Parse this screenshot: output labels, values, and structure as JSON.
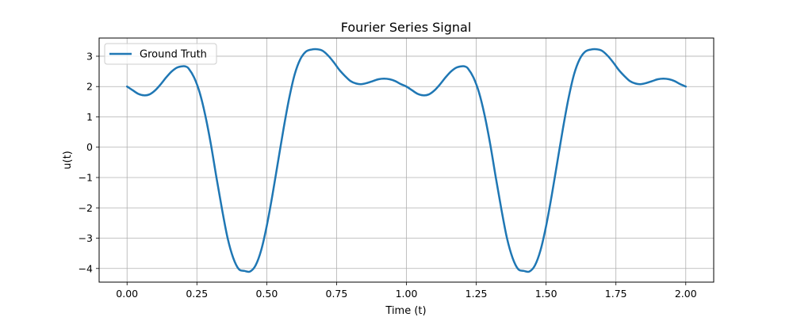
{
  "chart_data": {
    "type": "line",
    "title": "Fourier Series Signal",
    "xlabel": "Time (t)",
    "ylabel": "u(t)",
    "xlim": [
      -0.1,
      2.1
    ],
    "ylim": [
      -4.45,
      3.6
    ],
    "xticks": [
      0.0,
      0.25,
      0.5,
      0.75,
      1.0,
      1.25,
      1.5,
      1.75,
      2.0
    ],
    "xtick_labels": [
      "0.00",
      "0.25",
      "0.50",
      "0.75",
      "1.00",
      "1.25",
      "1.50",
      "1.75",
      "2.00"
    ],
    "yticks": [
      -4,
      -3,
      -2,
      -1,
      0,
      1,
      2,
      3
    ],
    "ytick_labels": [
      "−4",
      "−3",
      "−2",
      "−1",
      "0",
      "1",
      "2",
      "3"
    ],
    "grid": true,
    "legend": {
      "position": "top-left"
    },
    "series": [
      {
        "name": "Ground Truth",
        "color": "#1f77b4",
        "x": [
          0.0,
          0.02,
          0.04,
          0.06,
          0.08,
          0.1,
          0.12,
          0.14,
          0.16,
          0.18,
          0.2,
          0.21,
          0.22,
          0.24,
          0.26,
          0.28,
          0.3,
          0.32,
          0.34,
          0.36,
          0.38,
          0.4,
          0.42,
          0.44,
          0.46,
          0.48,
          0.5,
          0.52,
          0.54,
          0.56,
          0.58,
          0.6,
          0.62,
          0.64,
          0.66,
          0.68,
          0.7,
          0.72,
          0.74,
          0.76,
          0.78,
          0.8,
          0.82,
          0.84,
          0.86,
          0.88,
          0.9,
          0.92,
          0.94,
          0.96,
          0.98,
          1.0,
          1.02,
          1.04,
          1.06,
          1.08,
          1.1,
          1.12,
          1.14,
          1.16,
          1.18,
          1.2,
          1.21,
          1.22,
          1.24,
          1.26,
          1.28,
          1.3,
          1.32,
          1.34,
          1.36,
          1.38,
          1.4,
          1.42,
          1.44,
          1.46,
          1.48,
          1.5,
          1.52,
          1.54,
          1.56,
          1.58,
          1.6,
          1.62,
          1.64,
          1.66,
          1.68,
          1.7,
          1.72,
          1.74,
          1.76,
          1.78,
          1.8,
          1.82,
          1.84,
          1.86,
          1.88,
          1.9,
          1.92,
          1.94,
          1.96,
          1.98,
          2.0
        ],
        "values": [
          2.0,
          1.88,
          1.76,
          1.71,
          1.74,
          1.87,
          2.07,
          2.3,
          2.5,
          2.63,
          2.67,
          2.66,
          2.6,
          2.3,
          1.8,
          1.05,
          0.1,
          -1.0,
          -2.05,
          -3.0,
          -3.65,
          -4.02,
          -4.08,
          -4.1,
          -3.9,
          -3.4,
          -2.6,
          -1.6,
          -0.5,
          0.6,
          1.6,
          2.4,
          2.9,
          3.15,
          3.22,
          3.23,
          3.18,
          3.02,
          2.8,
          2.55,
          2.35,
          2.18,
          2.1,
          2.08,
          2.12,
          2.18,
          2.24,
          2.26,
          2.24,
          2.18,
          2.08,
          2.0,
          1.88,
          1.76,
          1.71,
          1.74,
          1.87,
          2.07,
          2.3,
          2.5,
          2.63,
          2.67,
          2.66,
          2.6,
          2.3,
          1.8,
          1.05,
          0.1,
          -1.0,
          -2.05,
          -3.0,
          -3.65,
          -4.02,
          -4.08,
          -4.1,
          -3.9,
          -3.4,
          -2.6,
          -1.6,
          -0.5,
          0.6,
          1.6,
          2.4,
          2.9,
          3.15,
          3.22,
          3.23,
          3.18,
          3.02,
          2.8,
          2.55,
          2.35,
          2.18,
          2.1,
          2.08,
          2.12,
          2.18,
          2.24,
          2.26,
          2.24,
          2.18,
          2.08,
          2.0
        ]
      }
    ]
  }
}
